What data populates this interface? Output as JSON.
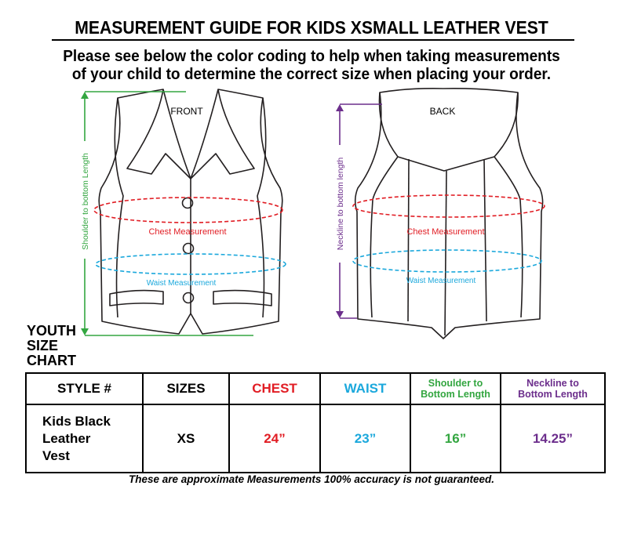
{
  "header": {
    "title": "MEASUREMENT GUIDE FOR KIDS XSMALL LEATHER VEST",
    "subtitle_line1": "Please see below the color coding to help when taking measurements",
    "subtitle_line2": "of your child to determine the correct size when placing your order."
  },
  "diagram": {
    "front_label": "FRONT",
    "back_label": "BACK",
    "front_chest_label": "Chest Measurement",
    "front_waist_label": "Waist Measurement",
    "back_chest_label": "Chest Measurement",
    "back_waist_label": "Waist Measurement",
    "shoulder_label": "Shoulder to bottom Length",
    "neckline_label": "Neckline to bottom length",
    "colors": {
      "chest": "#e11d24",
      "waist": "#1ba8dc",
      "shoulder": "#33a640",
      "neckline": "#6c2e8c"
    }
  },
  "chart_label": {
    "line1": "YOUTH",
    "line2": "SIZE",
    "line3": "CHART"
  },
  "table": {
    "headers": {
      "style": "STYLE #",
      "sizes": "SIZES",
      "chest": "CHEST",
      "waist": "WAIST",
      "shoulder_line1": "Shoulder to",
      "shoulder_line2": "Bottom Length",
      "neckline_line1": "Neckline to",
      "neckline_line2": "Bottom Length"
    },
    "row": {
      "style_line1": "Kids Black",
      "style_line2": "Leather",
      "style_line3": "Vest",
      "size": "XS",
      "chest": "24”",
      "waist": "23”",
      "shoulder": "16”",
      "neckline": "14.25”"
    }
  },
  "footer": {
    "note": "These are approximate Measurements 100% accuracy is not guaranteed."
  }
}
